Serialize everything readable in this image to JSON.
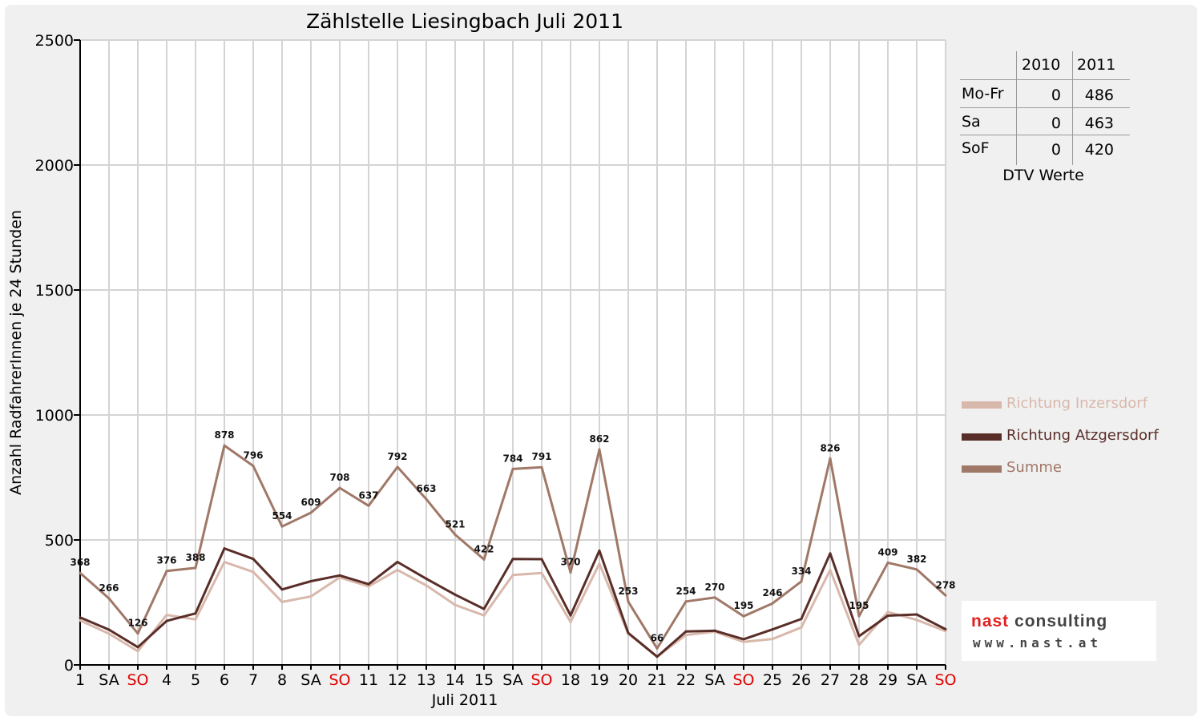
{
  "chart_data": {
    "type": "line",
    "title": "Zählstelle Liesingbach Juli 2011",
    "xlabel": "Juli 2011",
    "ylabel": "Anzahl RadfahrerInnen je 24 Stunden",
    "ylim": [
      0,
      2500
    ],
    "yticks": [
      0,
      500,
      1000,
      1500,
      2000,
      2500
    ],
    "grid": true,
    "legend_position": "right",
    "categories": [
      "1",
      "SA",
      "SO",
      "4",
      "5",
      "6",
      "7",
      "8",
      "SA",
      "SO",
      "11",
      "12",
      "13",
      "14",
      "15",
      "SA",
      "SO",
      "18",
      "19",
      "20",
      "21",
      "22",
      "SA",
      "SO",
      "25",
      "26",
      "27",
      "28",
      "29",
      "SA",
      "SO"
    ],
    "weekend_color": "#e00000",
    "series": [
      {
        "name": "Richtung Inzersdorf",
        "color": "#d9b8ac",
        "values": [
          178,
          125,
          55,
          200,
          182,
          412,
          372,
          252,
          274,
          350,
          314,
          380,
          318,
          240,
          198,
          360,
          368,
          172,
          405,
          125,
          33,
          120,
          133,
          92,
          104,
          150,
          380,
          80,
          212,
          180,
          135
        ]
      },
      {
        "name": "Richtung Atzgersdorf",
        "color": "#5a2e28",
        "values": [
          190,
          141,
          71,
          176,
          206,
          466,
          424,
          302,
          335,
          358,
          323,
          412,
          345,
          281,
          224,
          424,
          423,
          198,
          457,
          128,
          33,
          134,
          137,
          103,
          142,
          184,
          446,
          115,
          197,
          202,
          143
        ]
      },
      {
        "name": "Summe",
        "color": "#a07868",
        "values": [
          368,
          266,
          126,
          376,
          388,
          878,
          796,
          554,
          609,
          708,
          637,
          792,
          663,
          521,
          422,
          784,
          791,
          370,
          862,
          253,
          66,
          254,
          270,
          195,
          246,
          334,
          826,
          195,
          409,
          382,
          278
        ],
        "data_labels": [
          "368",
          "266",
          "126",
          "376",
          "388",
          "878",
          "796",
          "554",
          "609",
          "708",
          "637",
          "792",
          "663",
          "521",
          "422",
          "784",
          "791",
          "370",
          "862",
          "253",
          "66",
          "254",
          "270",
          "195",
          "246",
          "334",
          "826",
          "195",
          "409",
          "382",
          "278"
        ]
      }
    ]
  },
  "dtv_table": {
    "columns": [
      "2010",
      "2011"
    ],
    "rows": [
      {
        "label": "Mo-Fr",
        "v2010": "0",
        "v2011": "486"
      },
      {
        "label": "Sa",
        "v2010": "0",
        "v2011": "463"
      },
      {
        "label": "SoF",
        "v2010": "0",
        "v2011": "420"
      }
    ],
    "caption": "DTV Werte"
  },
  "legend": [
    {
      "label": "Richtung Inzersdorf",
      "color": "#d9b8ac"
    },
    {
      "label": "Richtung Atzgersdorf",
      "color": "#5a2e28"
    },
    {
      "label": "Summe",
      "color": "#a07868"
    }
  ],
  "logo": {
    "brand_red": "nast",
    "brand_grey": "consulting",
    "url": "www.nast.at"
  }
}
